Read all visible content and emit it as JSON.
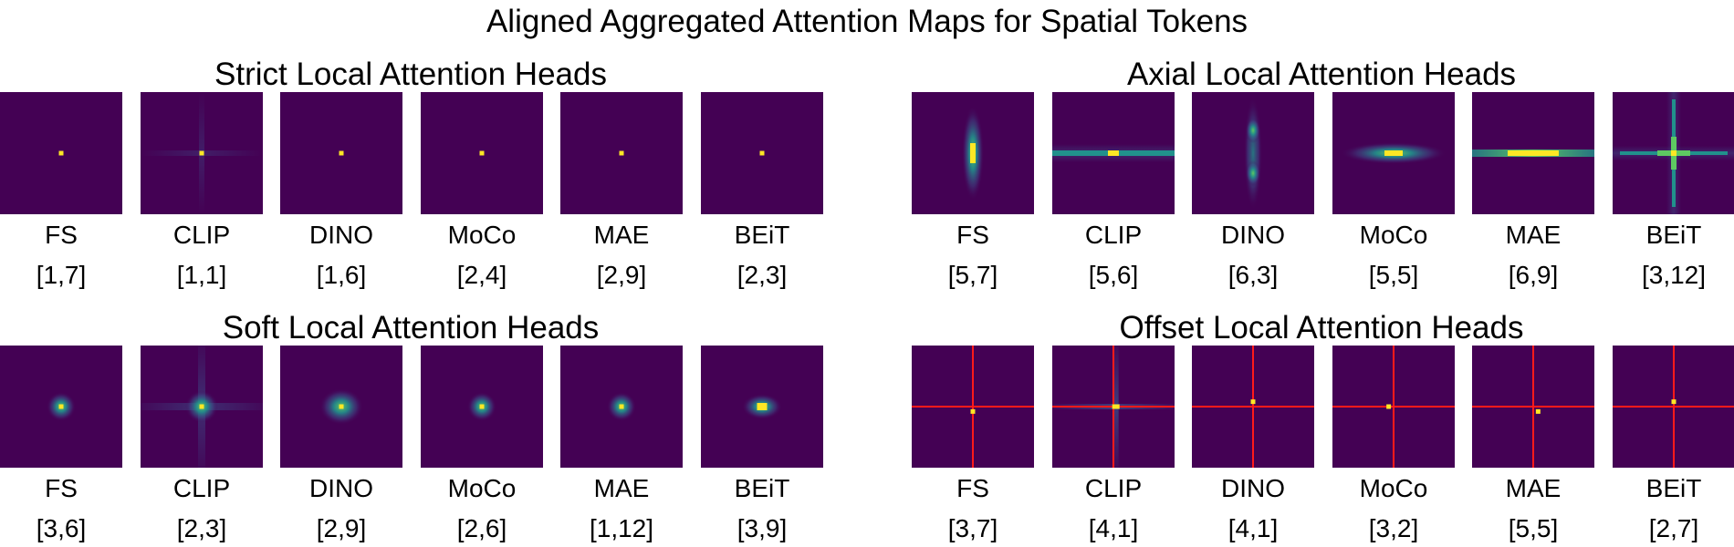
{
  "figure": {
    "title": "Aligned Aggregated Attention Maps for Spatial Tokens",
    "colors": {
      "background": "#440154",
      "low": "#3b528b",
      "mid": "#21918c",
      "high": "#5ec962",
      "peak": "#fde725",
      "crosshair": "#ff1a1a"
    },
    "sections": [
      {
        "title": "Strict Local Attention Heads",
        "panels": [
          {
            "model": "FS",
            "index": "[1,7]",
            "pattern": "point",
            "peak": [
              0.5,
              0.5
            ]
          },
          {
            "model": "CLIP",
            "index": "[1,1]",
            "pattern": "point-faint-cross",
            "peak": [
              0.5,
              0.5
            ]
          },
          {
            "model": "DINO",
            "index": "[1,6]",
            "pattern": "point",
            "peak": [
              0.5,
              0.5
            ]
          },
          {
            "model": "MoCo",
            "index": "[2,4]",
            "pattern": "point",
            "peak": [
              0.5,
              0.5
            ]
          },
          {
            "model": "MAE",
            "index": "[2,9]",
            "pattern": "point",
            "peak": [
              0.5,
              0.5
            ]
          },
          {
            "model": "BEiT",
            "index": "[2,3]",
            "pattern": "point",
            "peak": [
              0.5,
              0.5
            ]
          }
        ]
      },
      {
        "title": "Axial Local Attention Heads",
        "panels": [
          {
            "model": "FS",
            "index": "[5,7]",
            "pattern": "vertical-blob",
            "peak": [
              0.5,
              0.5
            ]
          },
          {
            "model": "CLIP",
            "index": "[5,6]",
            "pattern": "horizontal-line",
            "peak": [
              0.5,
              0.5
            ]
          },
          {
            "model": "DINO",
            "index": "[6,3]",
            "pattern": "vertical-double",
            "peak": [
              0.5,
              0.5
            ]
          },
          {
            "model": "MoCo",
            "index": "[5,5]",
            "pattern": "horizontal-blob",
            "peak": [
              0.5,
              0.5
            ]
          },
          {
            "model": "MAE",
            "index": "[6,9]",
            "pattern": "horizontal-line-bright",
            "peak": [
              0.5,
              0.5
            ]
          },
          {
            "model": "BEiT",
            "index": "[3,12]",
            "pattern": "cross",
            "peak": [
              0.5,
              0.5
            ]
          }
        ]
      },
      {
        "title": "Soft Local Attention Heads",
        "panels": [
          {
            "model": "FS",
            "index": "[3,6]",
            "pattern": "soft",
            "peak": [
              0.5,
              0.5
            ]
          },
          {
            "model": "CLIP",
            "index": "[2,3]",
            "pattern": "soft-cross",
            "peak": [
              0.5,
              0.5
            ]
          },
          {
            "model": "DINO",
            "index": "[2,9]",
            "pattern": "soft-wide",
            "peak": [
              0.5,
              0.5
            ]
          },
          {
            "model": "MoCo",
            "index": "[2,6]",
            "pattern": "soft",
            "peak": [
              0.5,
              0.5
            ]
          },
          {
            "model": "MAE",
            "index": "[1,12]",
            "pattern": "soft",
            "peak": [
              0.5,
              0.5
            ]
          },
          {
            "model": "BEiT",
            "index": "[3,9]",
            "pattern": "soft-horizontal",
            "peak": [
              0.5,
              0.5
            ]
          }
        ]
      },
      {
        "title": "Offset Local Attention Heads",
        "panels": [
          {
            "model": "FS",
            "index": "[3,7]",
            "pattern": "offset",
            "peak": [
              0.5,
              0.54
            ]
          },
          {
            "model": "CLIP",
            "index": "[4,1]",
            "pattern": "offset-blur",
            "peak": [
              0.52,
              0.5
            ]
          },
          {
            "model": "DINO",
            "index": "[4,1]",
            "pattern": "offset",
            "peak": [
              0.5,
              0.46
            ]
          },
          {
            "model": "MoCo",
            "index": "[3,2]",
            "pattern": "offset",
            "peak": [
              0.46,
              0.5
            ]
          },
          {
            "model": "MAE",
            "index": "[5,5]",
            "pattern": "offset",
            "peak": [
              0.54,
              0.54
            ]
          },
          {
            "model": "BEiT",
            "index": "[2,7]",
            "pattern": "offset",
            "peak": [
              0.5,
              0.46
            ]
          }
        ]
      }
    ]
  }
}
